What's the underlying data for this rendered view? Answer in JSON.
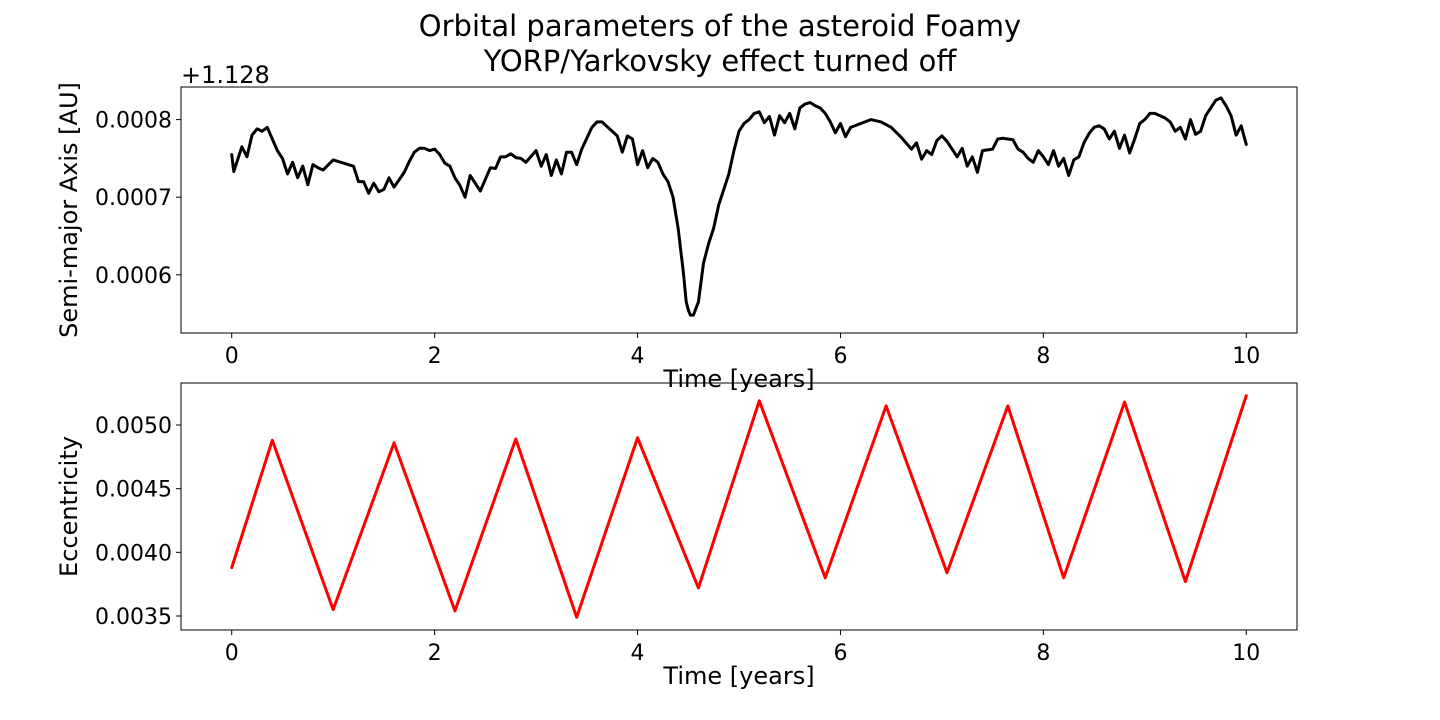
{
  "figure": {
    "title_line1": "Orbital parameters of the asteroid Foamy",
    "title_line2": "YORP/Yarkovsky effect turned off"
  },
  "chart_data": [
    {
      "type": "line",
      "xlabel": "Time [years]",
      "ylabel": "Semi-major Axis [AU]",
      "y_offset_label": "+1.128",
      "xlim": [
        -0.5,
        10.5
      ],
      "ylim": [
        0.000525,
        0.000842
      ],
      "grid": false,
      "x_ticks": [
        0,
        2,
        4,
        6,
        8,
        10
      ],
      "x_tick_labels": [
        "0",
        "2",
        "4",
        "6",
        "8",
        "10"
      ],
      "y_ticks": [
        0.0006,
        0.0007,
        0.0008
      ],
      "y_tick_labels": [
        "0.0006",
        "0.0007",
        "0.0008"
      ],
      "series": [
        {
          "color": "#000000",
          "x": [
            0.0,
            0.02,
            0.1,
            0.15,
            0.2,
            0.25,
            0.3,
            0.35,
            0.4,
            0.45,
            0.5,
            0.55,
            0.6,
            0.65,
            0.7,
            0.75,
            0.8,
            0.85,
            0.9,
            1.0,
            1.1,
            1.2,
            1.25,
            1.3,
            1.35,
            1.4,
            1.45,
            1.5,
            1.55,
            1.6,
            1.7,
            1.75,
            1.8,
            1.85,
            1.9,
            1.95,
            2.0,
            2.05,
            2.1,
            2.15,
            2.2,
            2.25,
            2.3,
            2.35,
            2.45,
            2.55,
            2.6,
            2.65,
            2.7,
            2.75,
            2.8,
            2.85,
            2.9,
            3.0,
            3.05,
            3.1,
            3.15,
            3.2,
            3.25,
            3.3,
            3.35,
            3.4,
            3.45,
            3.55,
            3.6,
            3.65,
            3.8,
            3.85,
            3.9,
            3.95,
            4.0,
            4.05,
            4.1,
            4.15,
            4.2,
            4.25,
            4.3,
            4.35,
            4.4,
            4.45,
            4.48,
            4.5,
            4.52,
            4.55,
            4.6,
            4.65,
            4.7,
            4.75,
            4.8,
            4.85,
            4.9,
            4.95,
            5.0,
            5.05,
            5.1,
            5.15,
            5.2,
            5.25,
            5.3,
            5.35,
            5.4,
            5.45,
            5.5,
            5.55,
            5.6,
            5.65,
            5.7,
            5.75,
            5.8,
            5.85,
            5.9,
            5.95,
            6.0,
            6.05,
            6.1,
            6.2,
            6.3,
            6.4,
            6.5,
            6.6,
            6.7,
            6.75,
            6.8,
            6.85,
            6.9,
            6.95,
            7.0,
            7.05,
            7.1,
            7.15,
            7.2,
            7.25,
            7.3,
            7.35,
            7.4,
            7.5,
            7.55,
            7.6,
            7.7,
            7.75,
            7.8,
            7.85,
            7.9,
            7.95,
            8.0,
            8.05,
            8.1,
            8.15,
            8.2,
            8.25,
            8.3,
            8.35,
            8.4,
            8.45,
            8.5,
            8.55,
            8.6,
            8.65,
            8.7,
            8.75,
            8.8,
            8.85,
            8.9,
            8.95,
            9.0,
            9.05,
            9.1,
            9.15,
            9.2,
            9.25,
            9.3,
            9.35,
            9.4,
            9.45,
            9.5,
            9.55,
            9.6,
            9.65,
            9.7,
            9.75,
            9.8,
            9.85,
            9.9,
            9.95,
            10.0
          ],
          "y": [
            0.000755,
            0.000733,
            0.000765,
            0.000752,
            0.00078,
            0.000788,
            0.000785,
            0.00079,
            0.000775,
            0.00076,
            0.00075,
            0.00073,
            0.000745,
            0.000725,
            0.00074,
            0.000716,
            0.000742,
            0.000738,
            0.000735,
            0.000748,
            0.000744,
            0.00074,
            0.00072,
            0.00072,
            0.000705,
            0.000718,
            0.000707,
            0.00071,
            0.000725,
            0.000713,
            0.000732,
            0.000746,
            0.000758,
            0.000763,
            0.000763,
            0.00076,
            0.000762,
            0.000755,
            0.000744,
            0.00074,
            0.000725,
            0.000715,
            0.0007,
            0.000728,
            0.000708,
            0.000738,
            0.000737,
            0.000752,
            0.000752,
            0.000756,
            0.000751,
            0.00075,
            0.000745,
            0.00076,
            0.00074,
            0.000755,
            0.000728,
            0.000748,
            0.00073,
            0.000758,
            0.000758,
            0.000742,
            0.000762,
            0.00079,
            0.000797,
            0.000797,
            0.000779,
            0.000758,
            0.000779,
            0.000775,
            0.000742,
            0.00076,
            0.000738,
            0.00075,
            0.000745,
            0.00073,
            0.00072,
            0.0007,
            0.00066,
            0.000605,
            0.000565,
            0.000555,
            0.000548,
            0.000548,
            0.000565,
            0.000615,
            0.00064,
            0.00066,
            0.00069,
            0.00071,
            0.00073,
            0.00076,
            0.000785,
            0.000795,
            0.0008,
            0.000808,
            0.00081,
            0.000796,
            0.000804,
            0.00078,
            0.000805,
            0.000796,
            0.000808,
            0.000788,
            0.000815,
            0.00082,
            0.000822,
            0.000818,
            0.000815,
            0.000808,
            0.000797,
            0.000783,
            0.000795,
            0.000778,
            0.00079,
            0.000795,
            0.0008,
            0.000797,
            0.00079,
            0.000777,
            0.000762,
            0.00077,
            0.000749,
            0.00076,
            0.000755,
            0.000773,
            0.000779,
            0.000772,
            0.000762,
            0.000752,
            0.000763,
            0.00074,
            0.000752,
            0.000732,
            0.00076,
            0.000762,
            0.000775,
            0.000776,
            0.000774,
            0.000762,
            0.000758,
            0.00075,
            0.000745,
            0.00076,
            0.000752,
            0.000742,
            0.00076,
            0.00074,
            0.00075,
            0.000728,
            0.000748,
            0.000752,
            0.00077,
            0.000782,
            0.00079,
            0.000792,
            0.000788,
            0.000775,
            0.000785,
            0.000763,
            0.00078,
            0.000757,
            0.000775,
            0.000795,
            0.0008,
            0.000808,
            0.000808,
            0.000805,
            0.000802,
            0.000797,
            0.000785,
            0.00079,
            0.000775,
            0.0008,
            0.000781,
            0.000785,
            0.000805,
            0.000815,
            0.000825,
            0.000828,
            0.000818,
            0.000805,
            0.00078,
            0.000792,
            0.000768
          ]
        }
      ]
    },
    {
      "type": "line",
      "xlabel": "Time [years]",
      "ylabel": "Eccentricity",
      "xlim": [
        -0.5,
        10.5
      ],
      "ylim": [
        0.00339,
        0.00533
      ],
      "grid": false,
      "x_ticks": [
        0,
        2,
        4,
        6,
        8,
        10
      ],
      "x_tick_labels": [
        "0",
        "2",
        "4",
        "6",
        "8",
        "10"
      ],
      "y_ticks": [
        0.0035,
        0.004,
        0.0045,
        0.005
      ],
      "y_tick_labels": [
        "0.0035",
        "0.0040",
        "0.0045",
        "0.0050"
      ],
      "series": [
        {
          "color": "#ff0000",
          "x": [
            0.0,
            0.4,
            1.0,
            1.6,
            2.2,
            2.8,
            3.4,
            4.0,
            4.6,
            5.2,
            5.85,
            6.45,
            7.05,
            7.65,
            8.2,
            8.8,
            9.4,
            10.0
          ],
          "y": [
            0.00388,
            0.00488,
            0.00355,
            0.00486,
            0.00354,
            0.00489,
            0.00349,
            0.0049,
            0.00372,
            0.00519,
            0.0038,
            0.00515,
            0.00384,
            0.00515,
            0.0038,
            0.00518,
            0.00377,
            0.00523
          ]
        }
      ]
    }
  ]
}
